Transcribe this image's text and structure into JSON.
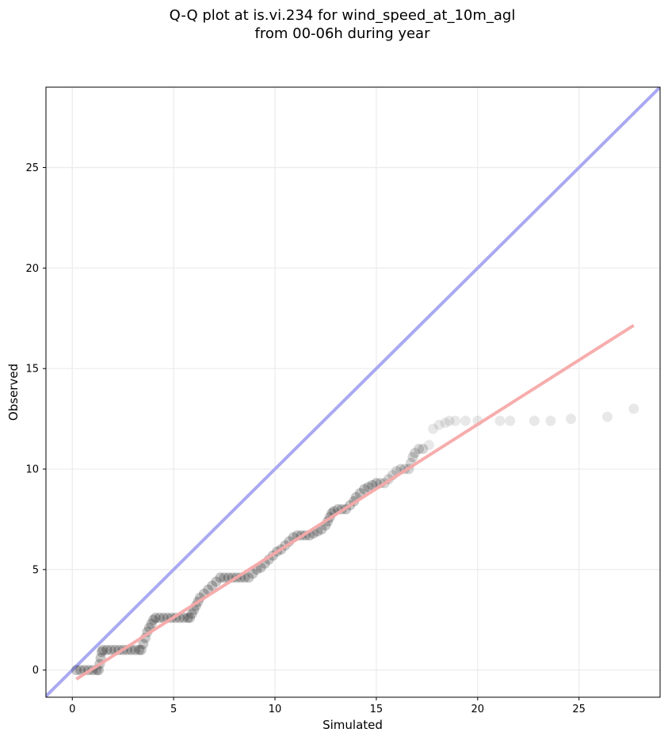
{
  "chart_data": {
    "type": "scatter",
    "title_line1": "Q-Q plot at is.vi.234 for wind_speed_at_10m_agl",
    "title_line2": "from 00-06h during year",
    "xlabel": "Simulated",
    "ylabel": "Observed",
    "xlim": [
      -1.3,
      29.0
    ],
    "ylim": [
      -1.35,
      29.0
    ],
    "xticks": [
      0,
      5,
      10,
      15,
      20,
      25
    ],
    "yticks": [
      0,
      5,
      10,
      15,
      20,
      25
    ],
    "grid": true,
    "colors": {
      "points": "#000000",
      "identity_line": "#a9a9f2",
      "fit_line": "#f7a9a9",
      "grid": "#ebebeb"
    },
    "identity_line": {
      "x": [
        -1.3,
        29.0
      ],
      "y": [
        -1.3,
        29.0
      ]
    },
    "fit_line": {
      "x": [
        0.2,
        27.7
      ],
      "y": [
        -0.45,
        17.15
      ]
    },
    "points": [
      [
        0.2,
        0.0
      ],
      [
        0.4,
        0.0
      ],
      [
        0.6,
        0.0
      ],
      [
        0.8,
        0.0
      ],
      [
        1.0,
        0.0
      ],
      [
        1.2,
        0.0
      ],
      [
        1.3,
        0.0
      ],
      [
        1.35,
        0.3
      ],
      [
        1.4,
        0.6
      ],
      [
        1.45,
        0.9
      ],
      [
        1.5,
        1.0
      ],
      [
        1.7,
        1.0
      ],
      [
        1.9,
        1.0
      ],
      [
        2.1,
        1.0
      ],
      [
        2.3,
        1.0
      ],
      [
        2.5,
        1.0
      ],
      [
        2.7,
        1.0
      ],
      [
        2.9,
        1.0
      ],
      [
        3.1,
        1.0
      ],
      [
        3.3,
        1.0
      ],
      [
        3.4,
        1.0
      ],
      [
        3.5,
        1.3
      ],
      [
        3.6,
        1.6
      ],
      [
        3.7,
        1.9
      ],
      [
        3.8,
        2.1
      ],
      [
        3.9,
        2.3
      ],
      [
        4.0,
        2.5
      ],
      [
        4.1,
        2.6
      ],
      [
        4.3,
        2.6
      ],
      [
        4.5,
        2.6
      ],
      [
        4.7,
        2.6
      ],
      [
        4.9,
        2.6
      ],
      [
        5.1,
        2.6
      ],
      [
        5.3,
        2.6
      ],
      [
        5.5,
        2.6
      ],
      [
        5.7,
        2.6
      ],
      [
        5.8,
        2.6
      ],
      [
        5.9,
        2.8
      ],
      [
        6.0,
        3.0
      ],
      [
        6.1,
        3.2
      ],
      [
        6.2,
        3.4
      ],
      [
        6.3,
        3.6
      ],
      [
        6.5,
        3.8
      ],
      [
        6.7,
        4.0
      ],
      [
        6.9,
        4.2
      ],
      [
        7.1,
        4.4
      ],
      [
        7.3,
        4.6
      ],
      [
        7.5,
        4.6
      ],
      [
        7.7,
        4.6
      ],
      [
        7.9,
        4.6
      ],
      [
        8.1,
        4.6
      ],
      [
        8.3,
        4.6
      ],
      [
        8.5,
        4.6
      ],
      [
        8.7,
        4.6
      ],
      [
        8.9,
        4.8
      ],
      [
        9.1,
        5.0
      ],
      [
        9.3,
        5.1
      ],
      [
        9.5,
        5.3
      ],
      [
        9.7,
        5.5
      ],
      [
        9.9,
        5.7
      ],
      [
        10.1,
        5.9
      ],
      [
        10.3,
        6.0
      ],
      [
        10.5,
        6.2
      ],
      [
        10.7,
        6.4
      ],
      [
        10.9,
        6.6
      ],
      [
        11.1,
        6.7
      ],
      [
        11.3,
        6.7
      ],
      [
        11.5,
        6.7
      ],
      [
        11.7,
        6.7
      ],
      [
        11.9,
        6.8
      ],
      [
        12.1,
        6.9
      ],
      [
        12.3,
        7.0
      ],
      [
        12.5,
        7.2
      ],
      [
        12.6,
        7.4
      ],
      [
        12.7,
        7.6
      ],
      [
        12.8,
        7.8
      ],
      [
        12.9,
        7.9
      ],
      [
        13.1,
        8.0
      ],
      [
        13.3,
        8.0
      ],
      [
        13.5,
        8.0
      ],
      [
        13.7,
        8.2
      ],
      [
        13.9,
        8.4
      ],
      [
        14.0,
        8.6
      ],
      [
        14.2,
        8.8
      ],
      [
        14.4,
        9.0
      ],
      [
        14.6,
        9.1
      ],
      [
        14.8,
        9.2
      ],
      [
        15.0,
        9.3
      ],
      [
        15.2,
        9.3
      ],
      [
        15.4,
        9.3
      ],
      [
        15.6,
        9.5
      ],
      [
        15.8,
        9.7
      ],
      [
        16.0,
        9.9
      ],
      [
        16.2,
        10.0
      ],
      [
        16.4,
        10.0
      ],
      [
        16.6,
        10.0
      ],
      [
        16.7,
        10.3
      ],
      [
        16.8,
        10.6
      ],
      [
        16.9,
        10.8
      ],
      [
        17.1,
        11.0
      ],
      [
        17.3,
        11.0
      ],
      [
        17.6,
        11.2
      ],
      [
        17.8,
        12.0
      ],
      [
        18.1,
        12.2
      ],
      [
        18.4,
        12.3
      ],
      [
        18.6,
        12.4
      ],
      [
        18.9,
        12.4
      ],
      [
        19.4,
        12.4
      ],
      [
        20.0,
        12.4
      ],
      [
        21.1,
        12.4
      ],
      [
        21.6,
        12.4
      ],
      [
        22.8,
        12.4
      ],
      [
        23.6,
        12.4
      ],
      [
        24.6,
        12.5
      ],
      [
        26.4,
        12.6
      ],
      [
        27.7,
        13.0
      ]
    ]
  }
}
